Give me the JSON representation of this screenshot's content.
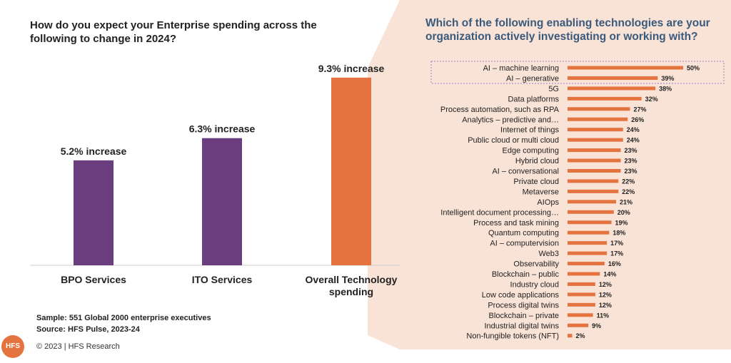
{
  "left": {
    "title": "How do you expect your Enterprise spending across the following to change in 2024?",
    "chart_data": {
      "type": "bar",
      "categories": [
        "BPO Services",
        "ITO Services",
        "Overall Technology spending"
      ],
      "values": [
        5.2,
        6.3,
        9.3
      ],
      "data_labels": [
        "5.2% increase",
        "6.3% increase",
        "9.3% increase"
      ],
      "colors": [
        "#6a3d7e",
        "#6a3d7e",
        "#e5733f"
      ],
      "ylim": [
        0,
        10
      ]
    }
  },
  "right": {
    "title": "Which of the following enabling technologies are your organization actively investigating or working with?",
    "chart_data": {
      "type": "bar",
      "orientation": "horizontal",
      "color": "#e5733f",
      "highlight_box": [
        "AI – machine learning",
        "AI – generative"
      ],
      "categories": [
        "AI – machine learning",
        "AI – generative",
        "5G",
        "Data platforms",
        "Process automation, such as RPA",
        "Analytics – predictive and…",
        "Internet of things",
        "Public cloud or multi cloud",
        "Edge computing",
        "Hybrid cloud",
        "AI – conversational",
        "Private cloud",
        "Metaverse",
        "AIOps",
        "Intelligent document processing…",
        "Process and task mining",
        "Quantum computing",
        "AI – computervision",
        "Web3",
        "Observability",
        "Blockchain – public",
        "Industry cloud",
        "Low code applications",
        "Process digital twins",
        "Blockchain – private",
        "Industrial digital twins",
        "Non-fungible tokens (NFT)"
      ],
      "values": [
        50,
        39,
        38,
        32,
        27,
        26,
        24,
        24,
        23,
        23,
        23,
        22,
        22,
        21,
        20,
        19,
        18,
        17,
        17,
        16,
        14,
        12,
        12,
        12,
        11,
        9,
        2
      ],
      "value_labels": [
        "50%",
        "39%",
        "38%",
        "32%",
        "27%",
        "26%",
        "24%",
        "24%",
        "23%",
        "23%",
        "23%",
        "22%",
        "22%",
        "21%",
        "20%",
        "19%",
        "18%",
        "17%",
        "17%",
        "16%",
        "14%",
        "12%",
        "12%",
        "12%",
        "11%",
        "9%",
        "2%"
      ]
    }
  },
  "footer": {
    "sample": "Sample: 551 Global 2000 enterprise executives",
    "source": "Source: HFS Pulse, 2023-24",
    "copyright": "© 2023 | HFS Research",
    "logo_text": "HFS"
  }
}
